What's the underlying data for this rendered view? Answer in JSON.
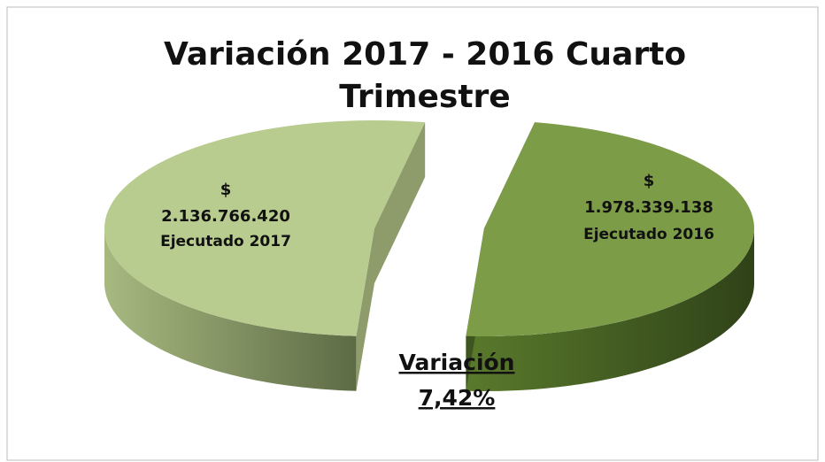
{
  "chart_data": {
    "type": "pie3d",
    "title": "Variación 2017 - 2016 Cuarto Trimestre",
    "categories": [
      "Ejecutado 2017",
      "Ejecutado 2016"
    ],
    "values": [
      2136766420,
      1978339138
    ],
    "value_labels": [
      "$ 2.136.766.420",
      "$ 1.978.339.138"
    ],
    "colors": [
      "#b8cc8f",
      "#7d9c48"
    ],
    "annotation": {
      "label": "Variación",
      "value": "7,42%"
    }
  }
}
